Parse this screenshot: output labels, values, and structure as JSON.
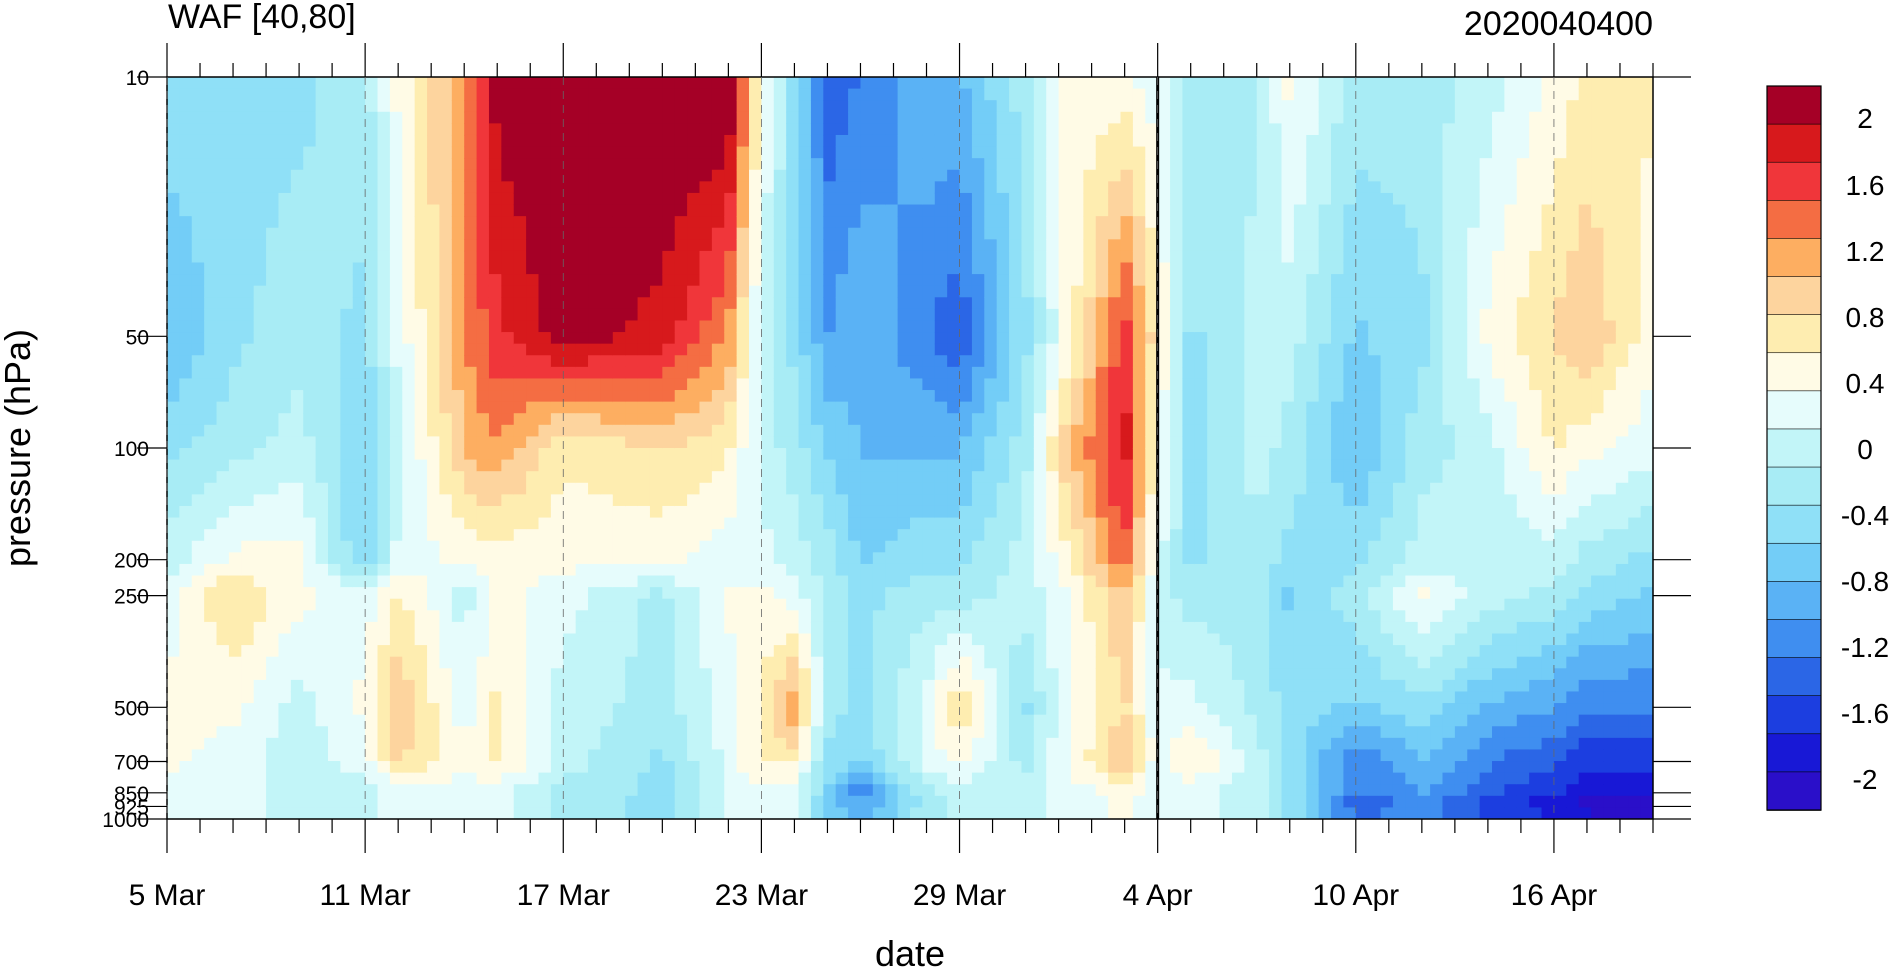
{
  "chart_data": {
    "type": "heatmap",
    "title": "WAF [40,80]",
    "subtitle": "2020040400",
    "xlabel": "date",
    "ylabel": "pressure (hPa)",
    "x_ticks": [
      "5 Mar",
      "11 Mar",
      "17 Mar",
      "23 Mar",
      "29 Mar",
      "4 Apr",
      "10 Apr",
      "16 Apr"
    ],
    "x_range": [
      "2020-03-05",
      "2020-04-19"
    ],
    "y_ticks": [
      10,
      50,
      100,
      200,
      250,
      500,
      700,
      850,
      925,
      1000
    ],
    "y_range": [
      1000,
      10
    ],
    "y_scale": "log",
    "marker_date": "2020-04-04",
    "colorbar": {
      "labels": [
        "2",
        "1.6",
        "1.2",
        "0.8",
        "0.4",
        "0",
        "-0.4",
        "-0.8",
        "-1.2",
        "-1.6",
        "-2"
      ],
      "colors": [
        "#a50026",
        "#d7191c",
        "#f0363a",
        "#f46d43",
        "#fdae61",
        "#fdd49e",
        "#feedb0",
        "#fffbe6",
        "#e6fcfc",
        "#c2f5f8",
        "#a8ecf5",
        "#8fe0f7",
        "#73cdf7",
        "#5ab2f5",
        "#3f8ef0",
        "#2b66e6",
        "#1c3ee0",
        "#1818d6",
        "#2a0fc9"
      ]
    },
    "profiles": [
      {
        "date": "2020-03-05",
        "p10": -0.4,
        "p50": -0.8,
        "p100": -0.4,
        "p200": 0.0,
        "p250": 0.2,
        "p500": 0.4,
        "p700": 0.4,
        "p850": 0.2,
        "p925": 0.2,
        "p1000": 0.2
      },
      {
        "date": "2020-03-07",
        "p10": -0.4,
        "p50": -0.4,
        "p100": -0.2,
        "p200": 0.4,
        "p250": 0.8,
        "p500": 0.4,
        "p700": 0.2,
        "p850": 0.2,
        "p925": 0.2,
        "p1000": 0.2
      },
      {
        "date": "2020-03-09",
        "p10": -0.4,
        "p50": -0.2,
        "p100": 0.0,
        "p200": 0.4,
        "p250": 0.4,
        "p500": 0.0,
        "p700": 0.0,
        "p850": 0.0,
        "p925": 0.0,
        "p1000": 0.0
      },
      {
        "date": "2020-03-11",
        "p10": -0.2,
        "p50": -0.4,
        "p100": -0.6,
        "p200": -0.6,
        "p250": 0.2,
        "p500": 0.4,
        "p700": 0.2,
        "p850": 0.0,
        "p925": 0.0,
        "p1000": 0.0
      },
      {
        "date": "2020-03-12",
        "p10": 0.4,
        "p50": 0.2,
        "p100": 0.0,
        "p200": 0.2,
        "p250": 0.6,
        "p500": 1.0,
        "p700": 0.8,
        "p850": 0.2,
        "p925": 0.2,
        "p1000": 0.2
      },
      {
        "date": "2020-03-14",
        "p10": 1.2,
        "p50": 1.2,
        "p100": 1.0,
        "p200": 0.4,
        "p250": 0.0,
        "p500": 0.2,
        "p700": 0.4,
        "p850": 0.2,
        "p925": 0.2,
        "p1000": 0.2
      },
      {
        "date": "2020-03-15",
        "p10": 2.0,
        "p50": 1.6,
        "p100": 1.2,
        "p200": 0.4,
        "p250": 0.4,
        "p500": 0.6,
        "p700": 0.6,
        "p850": 0.2,
        "p925": 0.2,
        "p1000": 0.2
      },
      {
        "date": "2020-03-17",
        "p10": 2.2,
        "p50": 2.0,
        "p100": 0.6,
        "p200": 0.4,
        "p250": 0.2,
        "p500": 0.0,
        "p700": 0.0,
        "p850": -0.2,
        "p925": -0.2,
        "p1000": -0.2
      },
      {
        "date": "2020-03-20",
        "p10": 2.2,
        "p50": 1.8,
        "p100": 0.8,
        "p200": 0.4,
        "p250": -0.2,
        "p500": -0.2,
        "p700": -0.4,
        "p850": -0.4,
        "p925": -0.4,
        "p1000": -0.4
      },
      {
        "date": "2020-03-22",
        "p10": 2.2,
        "p50": 1.2,
        "p100": 0.6,
        "p200": 0.2,
        "p250": 0.4,
        "p500": 0.2,
        "p700": 0.2,
        "p850": 0.2,
        "p925": 0.2,
        "p1000": 0.2
      },
      {
        "date": "2020-03-23",
        "p10": 0.4,
        "p50": 0.0,
        "p100": 0.0,
        "p200": 0.2,
        "p250": 0.4,
        "p500": 0.6,
        "p700": 0.6,
        "p850": 0.2,
        "p925": 0.2,
        "p1000": 0.2
      },
      {
        "date": "2020-03-24",
        "p10": -0.4,
        "p50": -0.4,
        "p100": -0.2,
        "p200": 0.0,
        "p250": 0.2,
        "p500": 1.2,
        "p700": 0.6,
        "p850": 0.2,
        "p925": 0.2,
        "p1000": 0.2
      },
      {
        "date": "2020-03-25",
        "p10": -1.4,
        "p50": -1.0,
        "p100": -0.6,
        "p200": -0.2,
        "p250": -0.2,
        "p500": -0.2,
        "p700": -0.4,
        "p850": -0.6,
        "p925": -0.6,
        "p1000": -0.6
      },
      {
        "date": "2020-03-26",
        "p10": -1.2,
        "p50": -0.8,
        "p100": -0.8,
        "p200": -0.6,
        "p250": -0.4,
        "p500": -0.4,
        "p700": -0.6,
        "p850": -1.2,
        "p925": -1.0,
        "p1000": -0.8
      },
      {
        "date": "2020-03-28",
        "p10": -0.8,
        "p50": -1.2,
        "p100": -0.8,
        "p200": -0.4,
        "p250": -0.2,
        "p500": 0.2,
        "p700": 0.2,
        "p850": -0.2,
        "p925": -0.2,
        "p1000": -0.2
      },
      {
        "date": "2020-03-29",
        "p10": -0.8,
        "p50": -1.4,
        "p100": -0.8,
        "p200": -0.4,
        "p250": -0.2,
        "p500": 0.8,
        "p700": 0.4,
        "p850": 0.0,
        "p925": 0.0,
        "p1000": 0.0
      },
      {
        "date": "2020-03-31",
        "p10": -0.2,
        "p50": -0.4,
        "p100": -0.2,
        "p200": 0.0,
        "p250": 0.0,
        "p500": -0.4,
        "p700": -0.2,
        "p850": 0.0,
        "p925": 0.0,
        "p1000": 0.0
      },
      {
        "date": "2020-04-01",
        "p10": 0.4,
        "p50": 0.2,
        "p100": 0.8,
        "p200": 0.4,
        "p250": 0.2,
        "p500": 0.2,
        "p700": 0.2,
        "p850": 0.2,
        "p925": 0.2,
        "p1000": 0.2
      },
      {
        "date": "2020-04-03",
        "p10": 0.4,
        "p50": 1.6,
        "p100": 1.8,
        "p200": 1.4,
        "p250": 1.0,
        "p500": 0.8,
        "p700": 1.0,
        "p850": 0.4,
        "p925": 0.4,
        "p1000": 0.4
      },
      {
        "date": "2020-04-04",
        "p10": 0.2,
        "p50": 0.6,
        "p100": 0.4,
        "p200": 0.2,
        "p250": 0.0,
        "p500": 0.2,
        "p700": 0.2,
        "p850": 0.2,
        "p925": 0.2,
        "p1000": 0.2
      },
      {
        "date": "2020-04-05",
        "p10": -0.2,
        "p50": -0.4,
        "p100": -0.4,
        "p200": -0.4,
        "p250": -0.2,
        "p500": 0.2,
        "p700": 0.6,
        "p850": 0.2,
        "p925": 0.2,
        "p1000": 0.2
      },
      {
        "date": "2020-04-07",
        "p10": -0.2,
        "p50": 0.0,
        "p100": 0.0,
        "p200": -0.2,
        "p250": -0.2,
        "p500": -0.2,
        "p700": 0.0,
        "p850": 0.0,
        "p925": 0.0,
        "p1000": 0.0
      },
      {
        "date": "2020-04-08",
        "p10": 0.4,
        "p50": 0.0,
        "p100": -0.2,
        "p200": -0.4,
        "p250": -0.6,
        "p500": -0.4,
        "p700": -0.4,
        "p850": -0.4,
        "p925": -0.4,
        "p1000": -0.4
      },
      {
        "date": "2020-04-10",
        "p10": -0.2,
        "p50": -0.6,
        "p100": -0.8,
        "p200": -0.4,
        "p250": -0.2,
        "p500": -0.6,
        "p700": -1.2,
        "p850": -1.2,
        "p925": -1.4,
        "p1000": -1.2
      },
      {
        "date": "2020-04-12",
        "p10": -0.2,
        "p50": -0.4,
        "p100": -0.2,
        "p200": 0.0,
        "p250": 0.4,
        "p500": -0.4,
        "p700": -0.8,
        "p850": -1.0,
        "p925": -1.2,
        "p1000": -1.0
      },
      {
        "date": "2020-04-14",
        "p10": 0.0,
        "p50": 0.4,
        "p100": 0.0,
        "p200": 0.0,
        "p250": 0.0,
        "p500": -0.8,
        "p700": -1.2,
        "p850": -1.4,
        "p925": -1.6,
        "p1000": -1.4
      },
      {
        "date": "2020-04-16",
        "p10": 0.4,
        "p50": 0.8,
        "p100": 0.6,
        "p200": 0.0,
        "p250": -0.2,
        "p500": -1.0,
        "p700": -1.4,
        "p850": -1.6,
        "p925": -1.8,
        "p1000": -1.6
      },
      {
        "date": "2020-04-17",
        "p10": 0.6,
        "p50": 1.0,
        "p100": 0.4,
        "p200": -0.2,
        "p250": -0.4,
        "p500": -1.2,
        "p700": -1.6,
        "p850": -1.8,
        "p925": -2.0,
        "p1000": -1.8
      },
      {
        "date": "2020-04-19",
        "p10": 0.6,
        "p50": 0.4,
        "p100": 0.2,
        "p200": -0.4,
        "p250": -0.6,
        "p500": -1.2,
        "p700": -1.6,
        "p850": -1.8,
        "p925": -2.0,
        "p1000": -1.8
      }
    ]
  }
}
